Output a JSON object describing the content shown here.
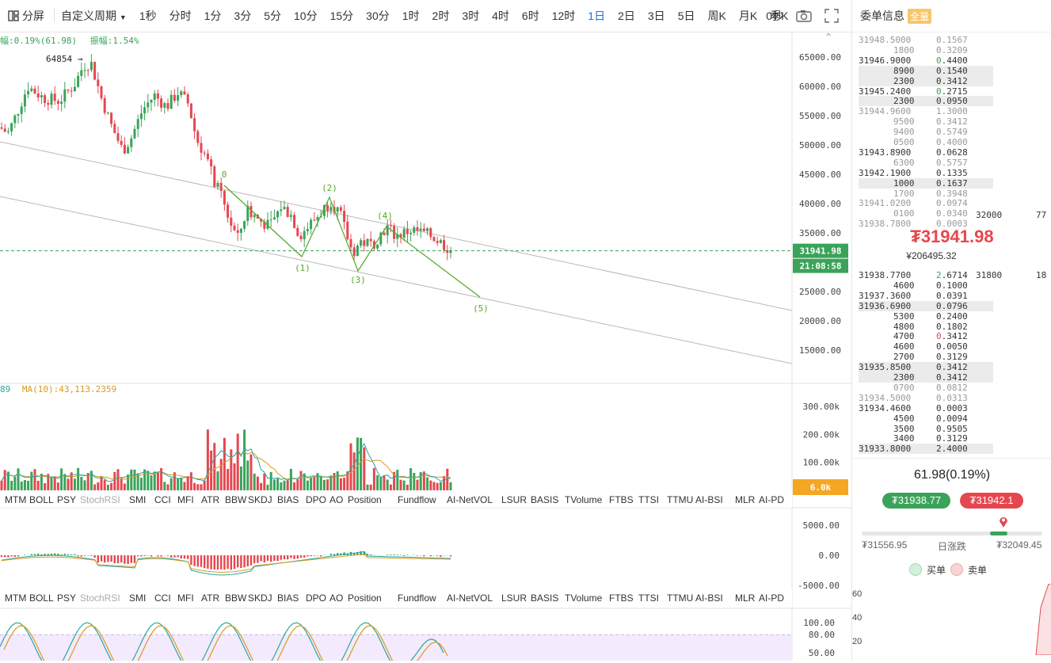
{
  "toolbar": {
    "split_label": "分屏",
    "custom_period": "自定义周期",
    "periods": [
      "1秒",
      "分时",
      "1分",
      "3分",
      "5分",
      "10分",
      "15分",
      "30分",
      "1时",
      "2时",
      "3时",
      "4时",
      "6时",
      "12时",
      "1日",
      "2日",
      "3日",
      "5日",
      "周K",
      "月K",
      "季K"
    ],
    "active_period": "1日",
    "countdown": "0秒"
  },
  "main_chart": {
    "info_line_amp1": "幅:0.19%(61.98)",
    "info_line_amp2": "振幅:1.54%",
    "high_label": "64854",
    "y_ticks": [
      "65000.00",
      "60000.00",
      "55000.00",
      "50000.00",
      "45000.00",
      "40000.00",
      "35000.00",
      "30000.00",
      "25000.00",
      "20000.00",
      "15000.00"
    ],
    "price_tag": "31941.98",
    "time_tag": "21:08:58",
    "wave_labels": [
      "0",
      "(1)",
      "(2)",
      "(3)",
      "(4)",
      "(5)"
    ],
    "colors": {
      "up": "#3aa35a",
      "down": "#e6474f",
      "wave": "#52a928",
      "channel": "#b9b9b9",
      "price_tag": "#3aa35a"
    }
  },
  "volume_panel": {
    "ma_text_1": "89",
    "ma_text_2": "MA(10):43,113.2359",
    "y_ticks": [
      "300.00k",
      "200.00k",
      "100.00k"
    ],
    "current_tag": "6.0k"
  },
  "indicator_tabs": [
    "MTM",
    "BOLL",
    "PSY",
    "StochRSI",
    "SMI",
    "CCI",
    "MFI",
    "ATR",
    "BBW",
    "SKDJ",
    "BIAS",
    "DPO",
    "AO",
    "Position",
    "Fundflow",
    "AI-NetVOL",
    "LSUR",
    "BASIS",
    "TVolume",
    "FTBS",
    "TTSI",
    "TTMU",
    "AI-BSI",
    "MLR",
    "AI-PD"
  ],
  "dimmed_tab": "StochRSI",
  "macd_panel": {
    "y_ticks": [
      "5000.00",
      "0.00",
      "-5000.00"
    ]
  },
  "kdj_panel": {
    "y_ticks": [
      "100.00",
      "80.00",
      "50.00"
    ]
  },
  "orderbook": {
    "title": "委单信息",
    "badge": "全量",
    "asks": [
      {
        "price": "31948.5000",
        "qty": "0.1567",
        "grey": true
      },
      {
        "price": "1800",
        "qty": "0.3209",
        "grey": true
      },
      {
        "price": "31946.9000",
        "qty": "0.4400"
      },
      {
        "price": "8900",
        "qty": "0.1540",
        "hl": true
      },
      {
        "price": "2300",
        "qty": "0.3412",
        "hl": true
      },
      {
        "price": "31945.2400",
        "qty": "0.2715"
      },
      {
        "price": "2300",
        "qty": "0.0950",
        "hl": true
      },
      {
        "price": "31944.9600",
        "qty": "1.3000",
        "grey": true
      },
      {
        "price": "9500",
        "qty": "0.3412",
        "grey": true
      },
      {
        "price": "9400",
        "qty": "0.5749",
        "grey": true
      },
      {
        "price": "0500",
        "qty": "0.4000",
        "grey": true
      },
      {
        "price": "31943.8900",
        "qty": "0.0628"
      },
      {
        "price": "6300",
        "qty": "0.5757",
        "grey": true
      },
      {
        "price": "31942.1900",
        "qty": "0.1335"
      },
      {
        "price": "1000",
        "qty": "0.1637",
        "hl": true
      },
      {
        "price": "1700",
        "qty": "0.3948",
        "grey": true
      },
      {
        "price": "31941.0200",
        "qty": "0.0974",
        "grey": true
      },
      {
        "price": "0100",
        "qty": "0.0340",
        "grey": true
      },
      {
        "price": "31938.7800",
        "qty": "0.0003",
        "grey": true
      }
    ],
    "ask_side_level": "32000",
    "ask_side_count": "77",
    "last_price": "₮31941.98",
    "last_price_cny": "¥206495.32",
    "bids": [
      {
        "price": "31938.7700",
        "qty": "2.6714"
      },
      {
        "price": "4600",
        "qty": "0.1000"
      },
      {
        "price": "31937.3600",
        "qty": "0.0391"
      },
      {
        "price": "31936.6900",
        "qty": "0.0796",
        "hl": true
      },
      {
        "price": "5300",
        "qty": "0.2400"
      },
      {
        "price": "4800",
        "qty": "0.1802"
      },
      {
        "price": "4700",
        "qty": "0.3412"
      },
      {
        "price": "4600",
        "qty": "0.0050"
      },
      {
        "price": "2700",
        "qty": "0.3129"
      },
      {
        "price": "31935.8500",
        "qty": "0.3412",
        "hl": true
      },
      {
        "price": "2300",
        "qty": "0.3412",
        "hl": true
      },
      {
        "price": "0700",
        "qty": "0.0812",
        "grey": true
      },
      {
        "price": "31934.5000",
        "qty": "0.0313",
        "grey": true
      },
      {
        "price": "31934.4600",
        "qty": "0.0003"
      },
      {
        "price": "4500",
        "qty": "0.0094"
      },
      {
        "price": "3500",
        "qty": "0.9505"
      },
      {
        "price": "3400",
        "qty": "0.3129"
      },
      {
        "price": "31933.8000",
        "qty": "2.4000",
        "hl": true
      }
    ],
    "bid_side_level": "31800",
    "bid_side_count": "18",
    "change_text": "61.98(0.19%)",
    "buy_price": "₮31938.77",
    "sell_price": "₮31942.1",
    "day_low": "₮31556.95",
    "day_label": "日涨跌",
    "day_high": "₮32049.45",
    "day_progress": 0.78,
    "legend_buy": "买单",
    "legend_sell": "卖单",
    "depth_axis": [
      "60",
      "40",
      "20"
    ]
  }
}
